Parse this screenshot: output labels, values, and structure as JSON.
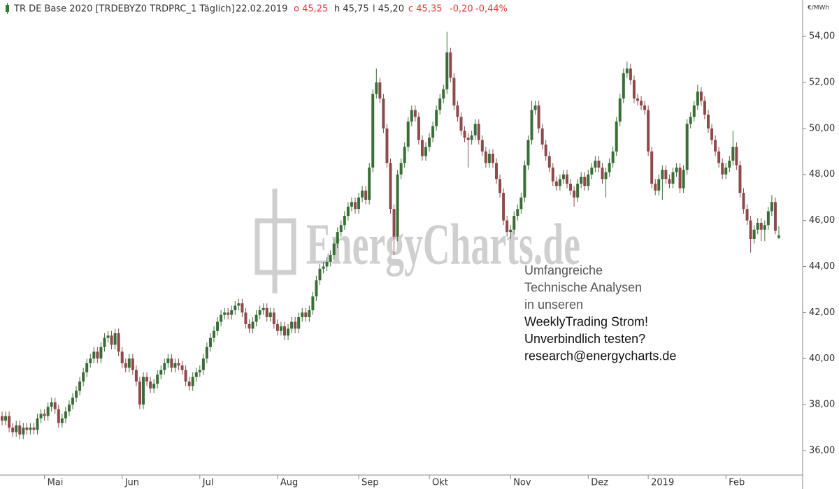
{
  "chart_data": {
    "type": "candlestick",
    "header": {
      "instrument": "TR DE Base 2020 [TRDEBYZ0 TRDPRC_1 Täglich]",
      "date": "22.02.2019",
      "open": "o 45,25",
      "high": "h 45,75",
      "low": "l 45,20",
      "close": "c 45,35",
      "change": "-0,20",
      "change_pct": "-0,44%"
    },
    "unit": "€/MWh",
    "watermark": "EnergyCharts.de",
    "annotation": [
      "Umfangreiche",
      "Technische Analysen",
      "in unseren",
      "WeeklyTrading Strom!",
      "Unverbindlich testen?",
      "research@energycharts.de"
    ],
    "up_color": "#3b6e37",
    "down_color": "#8e4a4a",
    "grid": false,
    "ylim": [
      34.94,
      55.58
    ],
    "yticks": [
      {
        "value": 36,
        "label": "36,00"
      },
      {
        "value": 38,
        "label": "38,00"
      },
      {
        "value": 40,
        "label": "40,00"
      },
      {
        "value": 42,
        "label": "42,00"
      },
      {
        "value": 44,
        "label": "44,00"
      },
      {
        "value": 46,
        "label": "46,00"
      },
      {
        "value": 48,
        "label": "48,00"
      },
      {
        "value": 50,
        "label": "50,00"
      },
      {
        "value": 52,
        "label": "52,00"
      },
      {
        "value": 54,
        "label": "54,00"
      }
    ],
    "xticks": [
      {
        "value": 12,
        "label": "Mai"
      },
      {
        "value": 34,
        "label": "Jun"
      },
      {
        "value": 56,
        "label": "Jul"
      },
      {
        "value": 78,
        "label": "Aug"
      },
      {
        "value": 101,
        "label": "Sep"
      },
      {
        "value": 121,
        "label": "Okt"
      },
      {
        "value": 144,
        "label": "Nov"
      },
      {
        "value": 166,
        "label": "Dez"
      },
      {
        "value": 183,
        "label": "2019"
      },
      {
        "value": 205,
        "label": "Feb"
      }
    ],
    "ohlc": [
      [
        37.5,
        37.7,
        37.1,
        37.3
      ],
      [
        37.3,
        37.7,
        37.1,
        37.5
      ],
      [
        37.5,
        37.7,
        36.8,
        37.0
      ],
      [
        37.0,
        37.2,
        36.6,
        36.8
      ],
      [
        36.8,
        37.3,
        36.6,
        37.1
      ],
      [
        37.1,
        37.3,
        36.5,
        36.7
      ],
      [
        36.7,
        37.2,
        36.5,
        37.0
      ],
      [
        37.0,
        37.2,
        36.7,
        36.9
      ],
      [
        36.9,
        37.2,
        36.7,
        37.0
      ],
      [
        37.0,
        37.2,
        36.7,
        36.9
      ],
      [
        36.9,
        37.6,
        36.7,
        37.4
      ],
      [
        37.4,
        37.8,
        37.2,
        37.6
      ],
      [
        37.6,
        37.8,
        37.3,
        37.5
      ],
      [
        37.5,
        38.1,
        37.3,
        37.9
      ],
      [
        37.9,
        38.3,
        37.7,
        38.1
      ],
      [
        38.1,
        38.3,
        37.6,
        37.8
      ],
      [
        37.8,
        38.0,
        37.0,
        37.2
      ],
      [
        37.2,
        37.6,
        37.0,
        37.4
      ],
      [
        37.4,
        37.9,
        37.2,
        37.7
      ],
      [
        37.7,
        38.2,
        37.5,
        38.0
      ],
      [
        38.0,
        38.5,
        37.8,
        38.3
      ],
      [
        38.3,
        38.8,
        38.1,
        38.6
      ],
      [
        38.6,
        39.2,
        38.4,
        39.0
      ],
      [
        39.0,
        39.6,
        38.8,
        39.4
      ],
      [
        39.4,
        40.0,
        39.2,
        39.8
      ],
      [
        39.8,
        40.2,
        39.6,
        40.0
      ],
      [
        40.0,
        40.5,
        39.8,
        40.3
      ],
      [
        40.3,
        40.5,
        39.8,
        40.0
      ],
      [
        40.0,
        40.7,
        39.8,
        40.5
      ],
      [
        40.5,
        41.1,
        40.3,
        40.9
      ],
      [
        40.9,
        41.2,
        40.7,
        41.0
      ],
      [
        41.0,
        41.2,
        40.4,
        40.6
      ],
      [
        40.6,
        41.3,
        40.4,
        41.1
      ],
      [
        41.1,
        41.3,
        40.1,
        40.3
      ],
      [
        40.3,
        40.5,
        39.6,
        39.8
      ],
      [
        39.8,
        40.0,
        39.4,
        39.6
      ],
      [
        39.6,
        40.2,
        39.4,
        40.0
      ],
      [
        40.0,
        40.2,
        39.3,
        39.5
      ],
      [
        39.5,
        39.7,
        38.8,
        39.0
      ],
      [
        39.0,
        39.2,
        37.8,
        38.0
      ],
      [
        38.0,
        39.4,
        37.8,
        39.2
      ],
      [
        39.2,
        39.4,
        38.8,
        39.0
      ],
      [
        39.0,
        39.2,
        38.5,
        38.7
      ],
      [
        38.7,
        39.1,
        38.5,
        38.9
      ],
      [
        38.9,
        39.5,
        38.7,
        39.3
      ],
      [
        39.3,
        39.7,
        39.1,
        39.5
      ],
      [
        39.5,
        40.0,
        39.3,
        39.8
      ],
      [
        39.8,
        40.2,
        39.6,
        40.0
      ],
      [
        40.0,
        40.2,
        39.4,
        39.6
      ],
      [
        39.6,
        40.0,
        39.4,
        39.8
      ],
      [
        39.8,
        40.0,
        39.5,
        39.7
      ],
      [
        39.7,
        39.9,
        39.3,
        39.5
      ],
      [
        39.5,
        39.7,
        38.8,
        39.0
      ],
      [
        39.0,
        39.2,
        38.6,
        38.8
      ],
      [
        38.8,
        39.4,
        38.6,
        39.2
      ],
      [
        39.2,
        39.6,
        39.0,
        39.4
      ],
      [
        39.4,
        39.7,
        39.2,
        39.5
      ],
      [
        39.5,
        40.2,
        39.3,
        40.0
      ],
      [
        40.0,
        40.7,
        39.8,
        40.5
      ],
      [
        40.5,
        41.1,
        40.3,
        40.9
      ],
      [
        40.9,
        41.4,
        40.7,
        41.2
      ],
      [
        41.2,
        41.8,
        41.0,
        41.6
      ],
      [
        41.6,
        42.1,
        41.4,
        41.9
      ],
      [
        41.9,
        42.2,
        41.7,
        42.0
      ],
      [
        42.0,
        42.2,
        41.7,
        41.9
      ],
      [
        41.9,
        42.3,
        41.7,
        42.1
      ],
      [
        42.1,
        42.5,
        41.9,
        42.3
      ],
      [
        42.3,
        42.6,
        42.1,
        42.4
      ],
      [
        42.4,
        42.6,
        41.8,
        42.0
      ],
      [
        42.0,
        42.2,
        41.3,
        41.5
      ],
      [
        41.5,
        41.7,
        41.1,
        41.3
      ],
      [
        41.3,
        41.8,
        41.1,
        41.6
      ],
      [
        41.6,
        42.1,
        41.4,
        41.9
      ],
      [
        41.9,
        42.3,
        41.7,
        42.1
      ],
      [
        42.1,
        42.4,
        41.9,
        42.2
      ],
      [
        42.2,
        42.4,
        41.6,
        41.8
      ],
      [
        41.8,
        42.2,
        41.6,
        42.0
      ],
      [
        42.0,
        42.2,
        41.3,
        41.5
      ],
      [
        41.5,
        41.7,
        41.0,
        41.2
      ],
      [
        41.2,
        41.6,
        41.0,
        41.4
      ],
      [
        41.4,
        41.6,
        40.8,
        41.0
      ],
      [
        41.0,
        41.5,
        40.8,
        41.3
      ],
      [
        41.3,
        41.8,
        41.1,
        41.6
      ],
      [
        41.6,
        41.8,
        41.1,
        41.3
      ],
      [
        41.3,
        42.0,
        41.1,
        41.8
      ],
      [
        41.8,
        42.2,
        41.6,
        42.0
      ],
      [
        42.0,
        42.2,
        41.6,
        41.8
      ],
      [
        41.8,
        42.3,
        41.6,
        42.1
      ],
      [
        42.1,
        42.9,
        41.9,
        42.7
      ],
      [
        42.7,
        43.6,
        42.5,
        43.4
      ],
      [
        43.4,
        44.1,
        43.2,
        43.9
      ],
      [
        43.9,
        44.2,
        43.7,
        44.0
      ],
      [
        44.0,
        44.4,
        43.8,
        44.2
      ],
      [
        44.2,
        44.7,
        44.0,
        44.5
      ],
      [
        44.5,
        45.2,
        44.3,
        45.0
      ],
      [
        45.0,
        45.7,
        44.8,
        45.5
      ],
      [
        45.5,
        46.0,
        45.3,
        45.8
      ],
      [
        45.8,
        46.4,
        45.6,
        46.2
      ],
      [
        46.2,
        46.8,
        46.0,
        46.6
      ],
      [
        46.6,
        47.0,
        46.4,
        46.8
      ],
      [
        46.8,
        47.0,
        46.3,
        46.5
      ],
      [
        46.5,
        47.2,
        46.3,
        47.0
      ],
      [
        47.0,
        47.5,
        46.8,
        47.3
      ],
      [
        47.3,
        47.5,
        46.7,
        46.9
      ],
      [
        46.9,
        48.5,
        46.7,
        48.3
      ],
      [
        48.3,
        51.7,
        48.1,
        51.5
      ],
      [
        51.5,
        52.6,
        51.3,
        52.0
      ],
      [
        52.0,
        52.2,
        51.1,
        51.3
      ],
      [
        51.3,
        51.5,
        49.8,
        50.0
      ],
      [
        50.0,
        50.2,
        48.3,
        48.5
      ],
      [
        48.5,
        48.7,
        46.3,
        46.5
      ],
      [
        46.5,
        46.7,
        44.5,
        45.3
      ],
      [
        45.3,
        48.2,
        45.1,
        48.0
      ],
      [
        48.0,
        48.7,
        47.8,
        48.5
      ],
      [
        48.5,
        49.4,
        48.3,
        49.2
      ],
      [
        49.2,
        50.5,
        49.0,
        50.3
      ],
      [
        50.3,
        51.0,
        50.1,
        50.8
      ],
      [
        50.8,
        51.0,
        50.3,
        50.5
      ],
      [
        50.5,
        50.7,
        49.3,
        49.5
      ],
      [
        49.5,
        49.7,
        48.6,
        48.8
      ],
      [
        48.8,
        49.4,
        48.6,
        49.2
      ],
      [
        49.2,
        49.8,
        49.0,
        49.6
      ],
      [
        49.6,
        50.3,
        49.4,
        50.1
      ],
      [
        50.1,
        51.0,
        49.9,
        50.8
      ],
      [
        50.8,
        51.5,
        50.6,
        51.3
      ],
      [
        51.3,
        51.9,
        51.1,
        51.7
      ],
      [
        51.7,
        54.2,
        51.5,
        53.3
      ],
      [
        53.3,
        53.5,
        52.0,
        52.2
      ],
      [
        52.2,
        52.4,
        50.8,
        51.0
      ],
      [
        51.0,
        51.2,
        50.3,
        50.5
      ],
      [
        50.5,
        50.7,
        49.7,
        49.9
      ],
      [
        49.9,
        50.1,
        49.4,
        49.6
      ],
      [
        49.6,
        49.8,
        48.3,
        49.5
      ],
      [
        49.5,
        49.9,
        49.3,
        49.7
      ],
      [
        49.7,
        50.4,
        49.5,
        50.2
      ],
      [
        50.2,
        50.4,
        49.3,
        49.5
      ],
      [
        49.5,
        49.7,
        48.8,
        49.0
      ],
      [
        49.0,
        49.2,
        48.3,
        48.5
      ],
      [
        48.5,
        49.1,
        48.3,
        48.9
      ],
      [
        48.9,
        49.1,
        48.3,
        48.5
      ],
      [
        48.5,
        48.7,
        47.6,
        47.8
      ],
      [
        47.8,
        48.0,
        47.0,
        47.2
      ],
      [
        47.2,
        47.4,
        45.8,
        46.0
      ],
      [
        46.0,
        46.2,
        45.3,
        45.5
      ],
      [
        45.5,
        45.8,
        45.2,
        45.6
      ],
      [
        45.6,
        46.4,
        45.4,
        46.2
      ],
      [
        46.2,
        46.7,
        46.0,
        46.5
      ],
      [
        46.5,
        47.2,
        46.3,
        47.0
      ],
      [
        47.0,
        48.6,
        46.8,
        48.4
      ],
      [
        48.4,
        49.7,
        48.2,
        49.5
      ],
      [
        49.5,
        51.2,
        49.3,
        50.8
      ],
      [
        50.8,
        51.2,
        50.6,
        51.0
      ],
      [
        51.0,
        51.2,
        49.8,
        50.0
      ],
      [
        50.0,
        50.2,
        49.1,
        49.3
      ],
      [
        49.3,
        49.5,
        48.6,
        48.8
      ],
      [
        48.8,
        49.0,
        48.1,
        48.3
      ],
      [
        48.3,
        48.5,
        47.5,
        47.7
      ],
      [
        47.7,
        47.9,
        47.3,
        47.5
      ],
      [
        47.5,
        48.0,
        47.3,
        47.8
      ],
      [
        47.8,
        48.2,
        47.6,
        48.0
      ],
      [
        48.0,
        48.2,
        47.4,
        47.6
      ],
      [
        47.6,
        47.8,
        47.1,
        47.3
      ],
      [
        47.3,
        47.5,
        46.6,
        47.0
      ],
      [
        47.0,
        47.8,
        46.8,
        47.6
      ],
      [
        47.6,
        48.1,
        47.4,
        47.9
      ],
      [
        47.9,
        48.1,
        47.3,
        47.5
      ],
      [
        47.5,
        48.2,
        47.3,
        48.0
      ],
      [
        48.0,
        48.5,
        47.8,
        48.3
      ],
      [
        48.3,
        48.8,
        48.1,
        48.6
      ],
      [
        48.6,
        48.8,
        48.1,
        48.3
      ],
      [
        48.3,
        48.5,
        47.6,
        47.8
      ],
      [
        47.8,
        48.3,
        47.0,
        48.1
      ],
      [
        48.1,
        48.7,
        47.9,
        48.5
      ],
      [
        48.5,
        49.2,
        48.3,
        49.0
      ],
      [
        49.0,
        50.5,
        48.8,
        50.3
      ],
      [
        50.3,
        51.5,
        50.1,
        51.3
      ],
      [
        51.3,
        52.6,
        51.1,
        52.4
      ],
      [
        52.4,
        52.9,
        52.2,
        52.6
      ],
      [
        52.6,
        52.8,
        51.9,
        52.1
      ],
      [
        52.1,
        52.3,
        51.1,
        51.3
      ],
      [
        51.3,
        51.5,
        51.0,
        51.2
      ],
      [
        51.2,
        51.4,
        50.8,
        51.0
      ],
      [
        51.0,
        51.2,
        50.6,
        50.8
      ],
      [
        50.8,
        51.0,
        48.8,
        49.0
      ],
      [
        49.0,
        49.2,
        47.4,
        47.6
      ],
      [
        47.6,
        47.8,
        47.1,
        47.3
      ],
      [
        47.3,
        48.0,
        47.1,
        47.8
      ],
      [
        47.8,
        48.4,
        46.9,
        48.2
      ],
      [
        48.2,
        48.4,
        47.6,
        47.8
      ],
      [
        47.8,
        48.0,
        47.4,
        47.6
      ],
      [
        47.6,
        48.3,
        47.4,
        48.1
      ],
      [
        48.1,
        48.5,
        47.9,
        48.3
      ],
      [
        48.3,
        48.5,
        47.2,
        47.4
      ],
      [
        47.4,
        48.4,
        47.2,
        48.2
      ],
      [
        48.2,
        50.4,
        48.0,
        50.2
      ],
      [
        50.2,
        50.7,
        50.0,
        50.5
      ],
      [
        50.5,
        51.2,
        50.3,
        51.0
      ],
      [
        51.0,
        51.9,
        50.8,
        51.6
      ],
      [
        51.6,
        51.8,
        51.0,
        51.2
      ],
      [
        51.2,
        51.4,
        50.4,
        50.6
      ],
      [
        50.6,
        50.8,
        49.8,
        50.0
      ],
      [
        50.0,
        50.2,
        49.3,
        49.5
      ],
      [
        49.5,
        49.7,
        48.8,
        49.0
      ],
      [
        49.0,
        49.2,
        48.3,
        48.5
      ],
      [
        48.5,
        48.7,
        47.8,
        48.0
      ],
      [
        48.0,
        48.5,
        47.8,
        48.3
      ],
      [
        48.3,
        48.8,
        48.1,
        48.6
      ],
      [
        48.6,
        49.9,
        48.4,
        49.2
      ],
      [
        49.2,
        49.4,
        48.2,
        48.4
      ],
      [
        48.4,
        48.6,
        47.0,
        47.2
      ],
      [
        47.2,
        47.4,
        46.3,
        46.5
      ],
      [
        46.5,
        46.7,
        45.8,
        46.0
      ],
      [
        46.0,
        46.2,
        44.6,
        45.2
      ],
      [
        45.2,
        45.8,
        45.0,
        45.6
      ],
      [
        45.6,
        46.1,
        45.4,
        45.9
      ],
      [
        45.9,
        46.1,
        45.1,
        45.6
      ],
      [
        45.6,
        46.0,
        45.1,
        45.8
      ],
      [
        45.8,
        46.6,
        45.6,
        46.4
      ],
      [
        46.4,
        47.1,
        46.2,
        46.8
      ],
      [
        46.8,
        47.0,
        45.4,
        45.55
      ],
      [
        45.25,
        45.75,
        45.2,
        45.35
      ]
    ]
  }
}
